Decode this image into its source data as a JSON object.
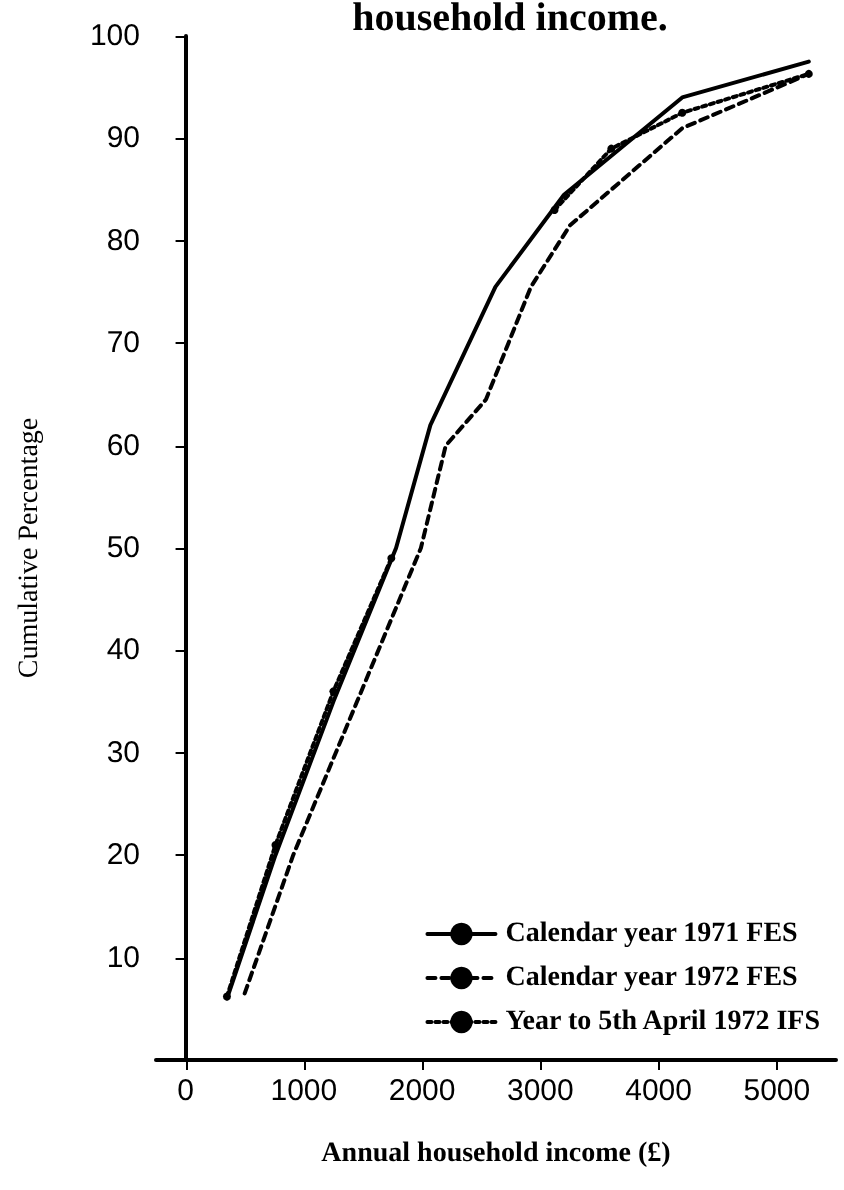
{
  "chart_data": {
    "type": "line",
    "title": "household income.",
    "xlabel": "Annual household income (£)",
    "ylabel": "Cumulative Percentage",
    "xlim": [
      -250,
      5500
    ],
    "xticks": [
      0,
      1000,
      2000,
      3000,
      4000,
      5000
    ],
    "ylim": [
      0,
      100
    ],
    "yticks": [
      {
        "value": 0,
        "label": null
      },
      10,
      20,
      30,
      40,
      50,
      60,
      70,
      80,
      90,
      100
    ],
    "grid": false,
    "legend": "bottom right",
    "series": [
      {
        "name": "Calendar year 1971 FES",
        "color": "#000000",
        "line_style": "solid",
        "marker": "none",
        "x": [
          350,
          760,
          1250,
          1780,
          2070,
          2620,
          3200,
          4200,
          5270
        ],
        "values": [
          6,
          20,
          35,
          50,
          62,
          75.5,
          84.5,
          94,
          97.5
        ]
      },
      {
        "name": "Calendar year 1972 FES",
        "color": "#000000",
        "line_style": "dashed",
        "marker": "none",
        "x": [
          500,
          910,
          1450,
          1990,
          2200,
          2540,
          2920,
          3250,
          4200,
          5270
        ],
        "values": [
          6.5,
          20,
          35,
          50,
          60,
          64.5,
          75.5,
          81.5,
          91,
          96.3
        ]
      },
      {
        "name": "Year to 5th April 1972 IFS",
        "color": "#000000",
        "line_style": "dotted",
        "marker": "circle",
        "x": [
          350,
          760,
          1250,
          1740,
          2070,
          2620,
          3120,
          3600,
          4200,
          5270
        ],
        "values": [
          6.2,
          21,
          36,
          49,
          null,
          null,
          83,
          89,
          92.5,
          96.3
        ]
      }
    ]
  }
}
